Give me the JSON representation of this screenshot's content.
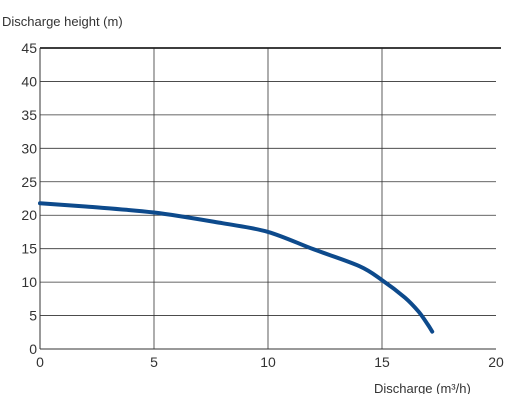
{
  "chart_data": {
    "type": "line",
    "title": "",
    "ylabel": "Discharge height (m)",
    "xlabel": "Discharge (m³/h)",
    "xlim": [
      0,
      20
    ],
    "ylim": [
      0,
      45
    ],
    "x_ticks": [
      "0",
      "5",
      "10",
      "15",
      "20"
    ],
    "y_ticks": [
      "0",
      "5",
      "10",
      "15",
      "20",
      "25",
      "30",
      "35",
      "40",
      "45"
    ],
    "grid": true,
    "legend": "none",
    "series": [
      {
        "color": "#0d4a8c",
        "x": [
          0,
          2,
          5,
          8,
          10,
          12,
          14,
          15,
          16,
          16.6,
          17,
          17.2
        ],
        "y": [
          21.8,
          21.3,
          20.4,
          18.8,
          17.5,
          14.9,
          12.4,
          10.3,
          7.7,
          5.6,
          3.7,
          2.6
        ]
      }
    ]
  }
}
